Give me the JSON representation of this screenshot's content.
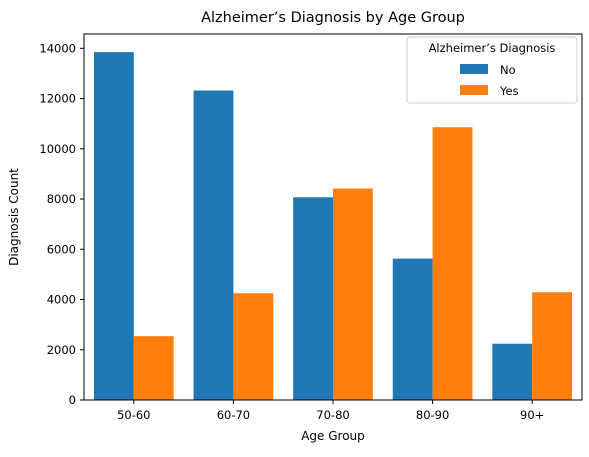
{
  "chart_data": {
    "type": "bar",
    "title": "Alzheimer’s Diagnosis by Age Group",
    "xlabel": "Age Group",
    "ylabel": "Diagnosis Count",
    "categories": [
      "50-60",
      "60-70",
      "70-80",
      "80-90",
      "90+"
    ],
    "series": [
      {
        "name": "No",
        "color": "#1f77b4",
        "values": [
          13850,
          12320,
          8070,
          5630,
          2240
        ]
      },
      {
        "name": "Yes",
        "color": "#ff7f0e",
        "values": [
          2540,
          4250,
          8420,
          10860,
          4290
        ]
      }
    ],
    "ylim": [
      0,
      14570
    ],
    "yticks": [
      0,
      2000,
      4000,
      6000,
      8000,
      10000,
      12000,
      14000
    ],
    "grid": false,
    "legend": {
      "title": "Alzheimer’s Diagnosis",
      "position": "top-right"
    }
  }
}
